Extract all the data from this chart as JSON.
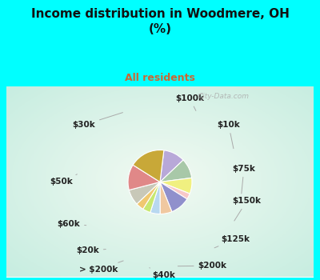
{
  "title": "Income distribution in Woodmere, OH\n(%)",
  "subtitle": "All residents",
  "title_color": "#111111",
  "subtitle_color": "#cc6633",
  "background_cyan": "#00ffff",
  "background_chart_color": "#e0f5ee",
  "slices": [
    {
      "label": "$100k",
      "value": 11,
      "color": "#b8a8d8"
    },
    {
      "label": "$10k",
      "value": 10,
      "color": "#a8c8a8"
    },
    {
      "label": "$75k",
      "value": 8,
      "color": "#f0f080"
    },
    {
      "label": "$150k",
      "value": 3,
      "color": "#f8c8c8"
    },
    {
      "label": "$125k",
      "value": 10,
      "color": "#9090cc"
    },
    {
      "label": "$200k",
      "value": 6,
      "color": "#f0c8a0"
    },
    {
      "label": "$40k",
      "value": 5,
      "color": "#b8d8f0"
    },
    {
      "label": "> $200k",
      "value": 4,
      "color": "#c8e870"
    },
    {
      "label": "$20k",
      "value": 4,
      "color": "#f0c870"
    },
    {
      "label": "$60k",
      "value": 8,
      "color": "#c8c8b8"
    },
    {
      "label": "$50k",
      "value": 13,
      "color": "#e08888"
    },
    {
      "label": "$30k",
      "value": 18,
      "color": "#c8a838"
    }
  ],
  "label_fontsize": 7.5,
  "label_color": "#222222",
  "watermark": "City-Data.com",
  "title_fontsize": 11,
  "subtitle_fontsize": 9
}
